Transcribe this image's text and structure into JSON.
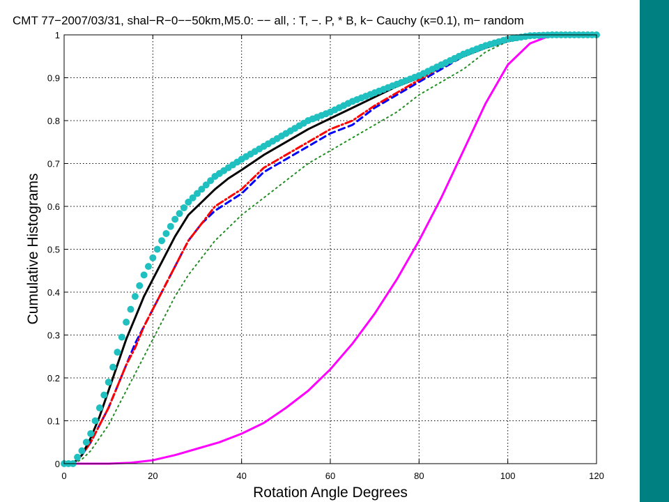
{
  "colors": {
    "side_bar": "#008080",
    "background": "#ffffff",
    "grid": "#000000"
  },
  "chart_data": {
    "type": "line",
    "title_parts": [
      "CMT 77−2007/03/31, shal−R−0−−50km,M5.0: −− all, : T, −. P, * B, k− Cauchy (",
      "κ",
      "=0.1), m− random"
    ],
    "xlabel": "Rotation Angle Degrees",
    "ylabel": "Cumulative Histograms",
    "xlim": [
      0,
      120
    ],
    "ylim": [
      0,
      1
    ],
    "xticks": [
      0,
      20,
      40,
      60,
      80,
      100,
      120
    ],
    "yticks": [
      0,
      0.1,
      0.2,
      0.3,
      0.4,
      0.5,
      0.6,
      0.7,
      0.8,
      0.9,
      1
    ],
    "xtick_labels": [
      "0",
      "20",
      "40",
      "60",
      "80",
      "100",
      "120"
    ],
    "ytick_labels": [
      "0",
      "0.1",
      "0.2",
      "0.3",
      "0.4",
      "0.5",
      "0.6",
      "0.7",
      "0.8",
      "0.9",
      "1"
    ],
    "grid": true,
    "series": [
      {
        "style": "dashed",
        "color": "#0000ff",
        "x": [
          0,
          2,
          4,
          6,
          8,
          10,
          12,
          14,
          16,
          18,
          20,
          22,
          25,
          28,
          31,
          34,
          37,
          40,
          45,
          50,
          55,
          60,
          65,
          70,
          75,
          80,
          85,
          90,
          95,
          100,
          105,
          110,
          115,
          120
        ],
        "y": [
          0,
          0,
          0.02,
          0.05,
          0.09,
          0.13,
          0.18,
          0.23,
          0.28,
          0.32,
          0.36,
          0.4,
          0.46,
          0.52,
          0.56,
          0.59,
          0.61,
          0.63,
          0.68,
          0.71,
          0.74,
          0.77,
          0.79,
          0.83,
          0.86,
          0.89,
          0.92,
          0.95,
          0.97,
          0.985,
          0.995,
          1,
          1,
          1
        ]
      },
      {
        "style": "dashdot",
        "color": "#ff0000",
        "x": [
          0,
          2,
          4,
          6,
          8,
          10,
          12,
          14,
          16,
          18,
          20,
          22,
          25,
          28,
          31,
          34,
          37,
          40,
          45,
          50,
          55,
          60,
          65,
          70,
          75,
          80,
          85,
          90,
          95,
          100,
          105,
          110,
          115,
          120
        ],
        "y": [
          0,
          0,
          0.02,
          0.05,
          0.09,
          0.13,
          0.18,
          0.23,
          0.27,
          0.32,
          0.36,
          0.4,
          0.46,
          0.52,
          0.56,
          0.6,
          0.62,
          0.64,
          0.69,
          0.72,
          0.75,
          0.78,
          0.8,
          0.835,
          0.865,
          0.895,
          0.925,
          0.955,
          0.975,
          0.99,
          0.997,
          1,
          1,
          1
        ]
      },
      {
        "style": "dotted",
        "color": "#228b22",
        "x": [
          0,
          2,
          4,
          6,
          8,
          10,
          12,
          14,
          16,
          18,
          20,
          22,
          25,
          28,
          31,
          34,
          37,
          40,
          45,
          50,
          55,
          60,
          65,
          70,
          75,
          80,
          85,
          90,
          95,
          100,
          105,
          110,
          115,
          120
        ],
        "y": [
          0,
          0,
          0.01,
          0.03,
          0.06,
          0.09,
          0.13,
          0.17,
          0.21,
          0.25,
          0.29,
          0.33,
          0.39,
          0.44,
          0.48,
          0.52,
          0.55,
          0.58,
          0.62,
          0.66,
          0.7,
          0.73,
          0.76,
          0.79,
          0.82,
          0.86,
          0.89,
          0.92,
          0.96,
          0.985,
          0.995,
          1,
          1,
          1
        ]
      },
      {
        "style": "solid",
        "color": "#000000",
        "x": [
          0,
          2,
          4,
          6,
          8,
          10,
          12,
          14,
          16,
          18,
          20,
          22,
          25,
          28,
          31,
          34,
          37,
          40,
          45,
          50,
          55,
          60,
          65,
          70,
          75,
          80,
          85,
          90,
          95,
          100,
          105,
          110,
          115,
          120
        ],
        "y": [
          0,
          0,
          0.02,
          0.06,
          0.11,
          0.17,
          0.23,
          0.29,
          0.34,
          0.39,
          0.43,
          0.47,
          0.53,
          0.58,
          0.61,
          0.64,
          0.665,
          0.685,
          0.72,
          0.75,
          0.78,
          0.805,
          0.83,
          0.855,
          0.88,
          0.9,
          0.925,
          0.95,
          0.97,
          0.985,
          0.995,
          1,
          1,
          1
        ]
      },
      {
        "style": "solid",
        "color": "#ff00ff",
        "x": [
          0,
          5,
          10,
          15,
          20,
          25,
          30,
          35,
          40,
          45,
          50,
          55,
          60,
          65,
          70,
          75,
          80,
          85,
          90,
          95,
          100,
          105,
          110,
          115,
          120
        ],
        "y": [
          0,
          0,
          0,
          0.002,
          0.008,
          0.02,
          0.035,
          0.05,
          0.07,
          0.095,
          0.13,
          0.17,
          0.22,
          0.28,
          0.35,
          0.43,
          0.52,
          0.62,
          0.73,
          0.84,
          0.93,
          0.98,
          1,
          1,
          1
        ]
      },
      {
        "style": "markers",
        "color": "#20c0c0",
        "x": [
          0,
          2,
          4,
          6,
          8,
          10,
          12,
          14,
          16,
          18,
          20,
          22,
          25,
          28,
          31,
          34,
          37,
          40,
          45,
          50,
          55,
          60,
          65,
          70,
          75,
          80,
          85,
          90,
          95,
          100,
          105,
          110,
          115,
          120
        ],
        "y": [
          0,
          0,
          0.03,
          0.07,
          0.13,
          0.19,
          0.26,
          0.33,
          0.39,
          0.44,
          0.48,
          0.52,
          0.57,
          0.61,
          0.64,
          0.67,
          0.69,
          0.71,
          0.74,
          0.77,
          0.8,
          0.82,
          0.845,
          0.865,
          0.885,
          0.905,
          0.93,
          0.955,
          0.975,
          0.99,
          0.998,
          1,
          1,
          1
        ]
      }
    ]
  }
}
